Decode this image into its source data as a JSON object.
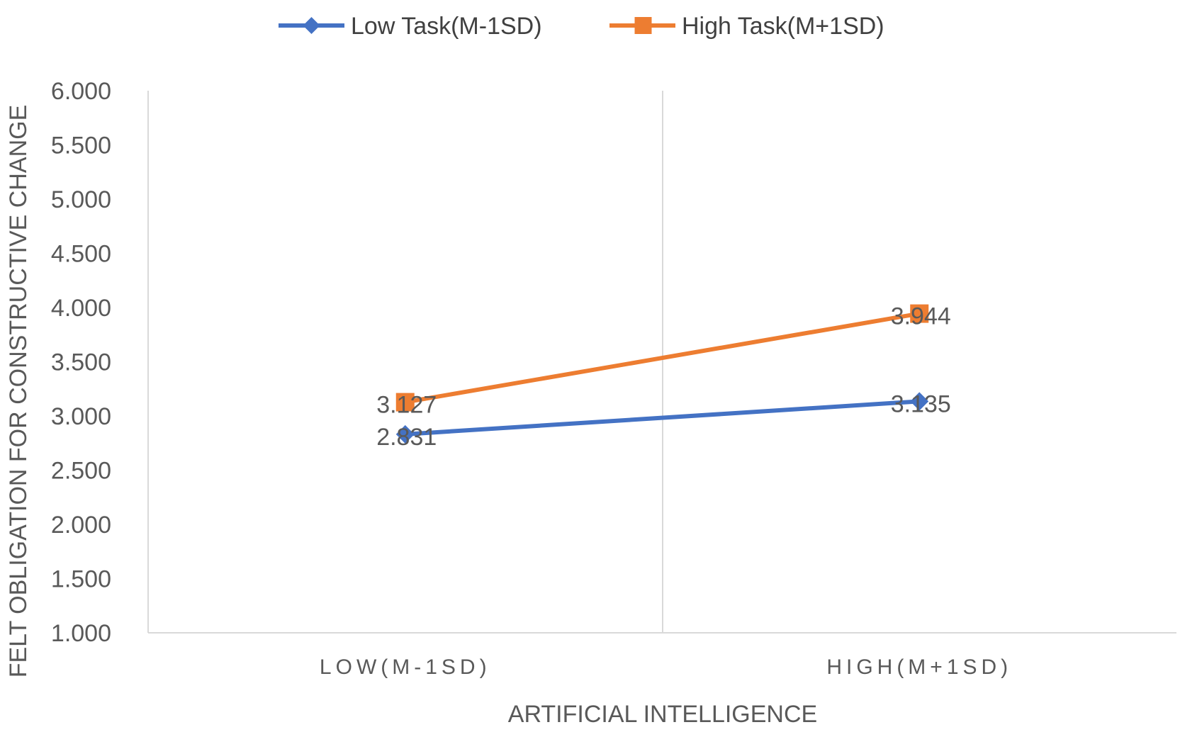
{
  "chart_data": {
    "type": "line",
    "categories": [
      "LOW(M-1SD)",
      "HIGH(M+1SD)"
    ],
    "series": [
      {
        "name": "Low Task(M-1SD)",
        "values": [
          2.831,
          3.135
        ],
        "labels": [
          "2.831",
          "3.135"
        ],
        "color": "#4472C4",
        "marker": "diamond"
      },
      {
        "name": "High Task(M+1SD)",
        "values": [
          3.127,
          3.944
        ],
        "labels": [
          "3.127",
          "3.944"
        ],
        "color": "#ED7D31",
        "marker": "square"
      }
    ],
    "xlabel": "ARTIFICIAL INTELLIGENCE",
    "ylabel": "FELT OBLIGATION FOR CONSTRUCTIVE CHANGE",
    "ylim": [
      1.0,
      6.0
    ],
    "yticks": [
      "1.000",
      "1.500",
      "2.000",
      "2.500",
      "3.000",
      "3.500",
      "4.000",
      "4.500",
      "5.000",
      "5.500",
      "6.000"
    ],
    "grid": false,
    "legend_position": "top"
  }
}
